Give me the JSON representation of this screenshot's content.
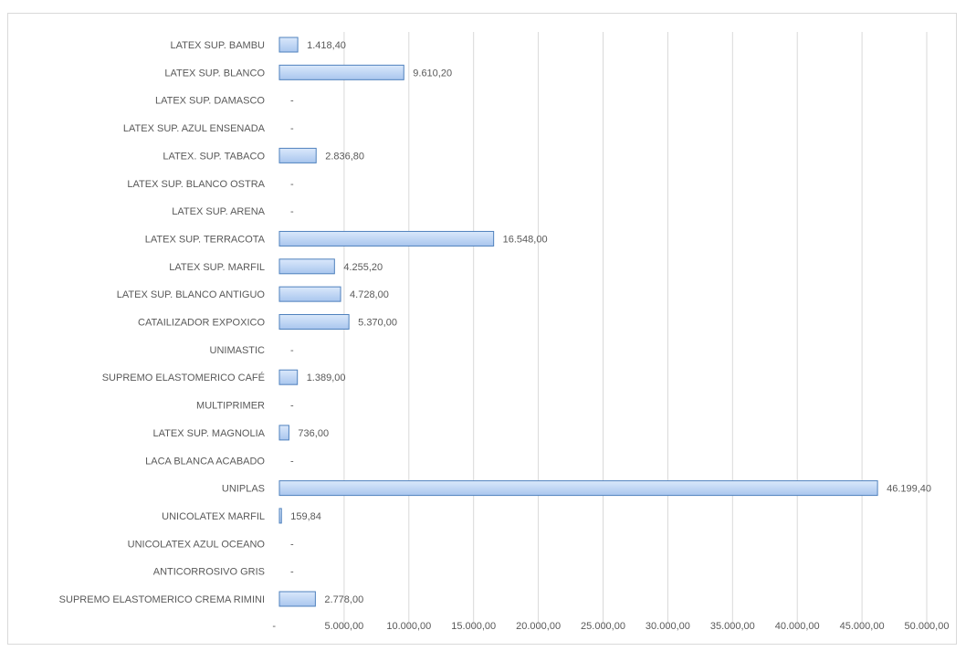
{
  "chart_data": {
    "type": "bar",
    "orientation": "horizontal",
    "categories": [
      "LATEX SUP. BAMBU",
      "LATEX SUP. BLANCO",
      "LATEX SUP. DAMASCO",
      "LATEX SUP. AZUL ENSENADA",
      "LATEX. SUP. TABACO",
      "LATEX SUP. BLANCO OSTRA",
      "LATEX SUP. ARENA",
      "LATEX SUP. TERRACOTA",
      "LATEX SUP. MARFIL",
      "LATEX SUP. BLANCO ANTIGUO",
      "CATAILIZADOR EXPOXICO",
      "UNIMASTIC",
      "SUPREMO ELASTOMERICO CAFÉ",
      "MULTIPRIMER",
      "LATEX SUP. MAGNOLIA",
      "LACA BLANCA ACABADO",
      "UNIPLAS",
      "UNICOLATEX MARFIL",
      "UNICOLATEX AZUL OCEANO",
      "ANTICORROSIVO GRIS",
      "SUPREMO ELASTOMERICO CREMA RIMINI"
    ],
    "values": [
      1418.4,
      9610.2,
      0,
      0,
      2836.8,
      0,
      0,
      16548.0,
      4255.2,
      4728.0,
      5370.0,
      0,
      1389.0,
      0,
      736.0,
      0,
      46199.4,
      159.84,
      0,
      0,
      2778.0
    ],
    "value_labels": [
      "1.418,40",
      "9.610,20",
      "-",
      "-",
      "2.836,80",
      "-",
      "-",
      "16.548,00",
      "4.255,20",
      "4.728,00",
      "5.370,00",
      "-",
      "1.389,00",
      "-",
      "736,00",
      "-",
      "46.199,40",
      "159,84",
      "-",
      "-",
      "2.778,00"
    ],
    "xlim": [
      0,
      50000
    ],
    "x_ticks": [
      0,
      5000,
      10000,
      15000,
      20000,
      25000,
      30000,
      35000,
      40000,
      45000,
      50000
    ],
    "x_tick_labels": [
      "-",
      "5.000,00",
      "10.000,00",
      "15.000,00",
      "20.000,00",
      "25.000,00",
      "30.000,00",
      "35.000,00",
      "40.000,00",
      "45.000,00",
      "50.000,00"
    ],
    "title": "",
    "xlabel": "",
    "ylabel": "",
    "grid": "vertical",
    "legend": "none",
    "bar_fill_top": "#dae8fb",
    "bar_fill_bottom": "#a9c6ee",
    "bar_stroke": "#4f81bd",
    "grid_color": "#d9d9d9",
    "text_color": "#595959"
  }
}
